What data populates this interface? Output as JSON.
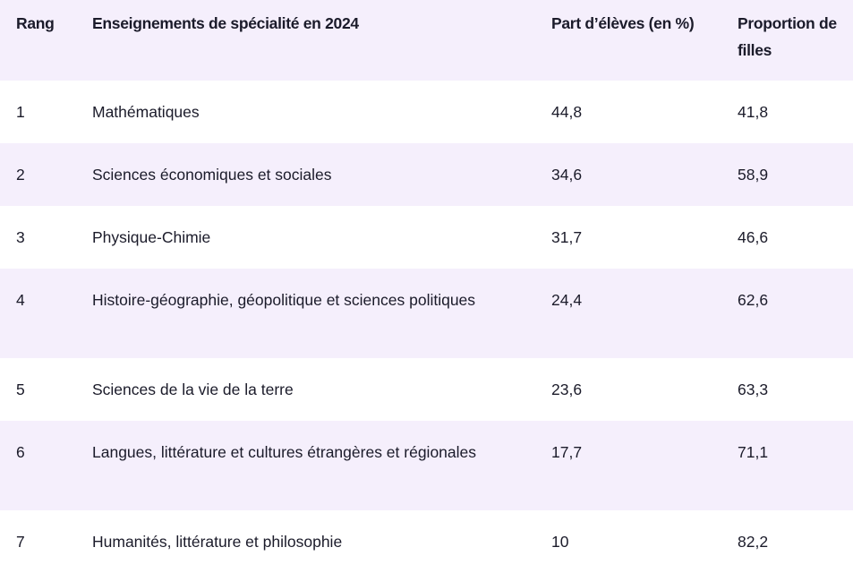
{
  "headers": [
    "Rang",
    "Enseignements de spécialité en 2024",
    "Part d’élèves (en %)",
    "Proportion de filles"
  ],
  "rows": [
    {
      "rang": "1",
      "enseignement": "Mathématiques",
      "part": "44,8",
      "filles": "41,8"
    },
    {
      "rang": "2",
      "enseignement": "Sciences économiques et sociales",
      "part": "34,6",
      "filles": "58,9"
    },
    {
      "rang": "3",
      "enseignement": "Physique-Chimie",
      "part": "31,7",
      "filles": "46,6"
    },
    {
      "rang": "4",
      "enseignement": "Histoire-géographie, géopolitique et sciences politiques",
      "part": "24,4",
      "filles": "62,6"
    },
    {
      "rang": "5",
      "enseignement": "Sciences de la vie de la terre",
      "part": "23,6",
      "filles": "63,3"
    },
    {
      "rang": "6",
      "enseignement": "Langues, littérature et cultures étrangères et régionales",
      "part": "17,7",
      "filles": "71,1"
    },
    {
      "rang": "7",
      "enseignement": "Humanités, littérature et philosophie",
      "part": "10",
      "filles": "82,2"
    }
  ]
}
